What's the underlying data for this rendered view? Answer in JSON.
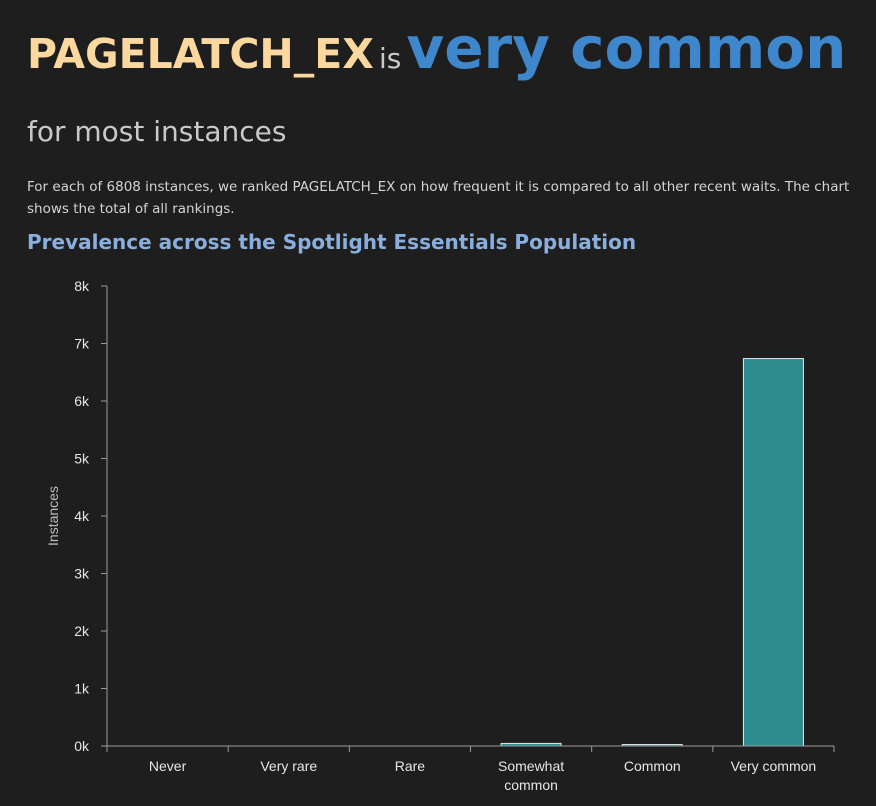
{
  "headline": {
    "subject": "PAGELATCH_EX",
    "connector": "is",
    "verdict": "very common",
    "suffix": "for most instances"
  },
  "description": "For each of 6808 instances, we ranked PAGELATCH_EX on how frequent it is compared to all other recent waits. The chart shows the total of all rankings.",
  "chart_heading": "Prevalence across the Spotlight Essentials Population",
  "colors": {
    "background": "#1e1e1e",
    "subject": "#fcd89e",
    "verdict": "#3f87cc",
    "heading": "#89aee0",
    "bar_fill": "#2e8b8e",
    "bar_stroke": "#e8e8e8",
    "axis": "#9a9a9a"
  },
  "chart_data": {
    "type": "bar",
    "categories": [
      "Never",
      "Very rare",
      "Rare",
      "Somewhat common",
      "Common",
      "Very common"
    ],
    "category_lines": [
      [
        "Never"
      ],
      [
        "Very rare"
      ],
      [
        "Rare"
      ],
      [
        "Somewhat",
        "common"
      ],
      [
        "Common"
      ],
      [
        "Very common"
      ]
    ],
    "values": [
      0,
      0,
      0,
      45,
      25,
      6738
    ],
    "ylabel": "Instances",
    "xlabel": "",
    "ylim": [
      0,
      8000
    ],
    "yticks": [
      0,
      1000,
      2000,
      3000,
      4000,
      5000,
      6000,
      7000,
      8000
    ],
    "ytick_labels": [
      "0k",
      "1k",
      "2k",
      "3k",
      "4k",
      "5k",
      "6k",
      "7k",
      "8k"
    ],
    "grid": false
  }
}
